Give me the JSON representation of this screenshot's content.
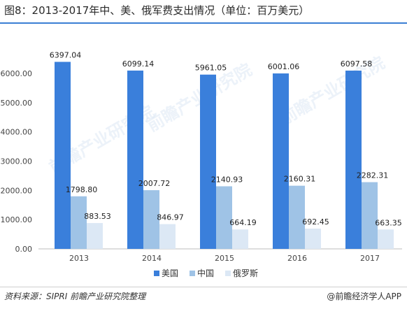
{
  "title": "图8：2013-2017年中、美、俄军费支出情况（单位：百万美元）",
  "source": "资料来源：SIPRI 前瞻产业研究院整理",
  "brand": "@前瞻经济学人APP",
  "watermark": "前瞻产业研究院",
  "colors": {
    "accent": "#3b7fd4",
    "usa": "#3a7fdb",
    "china": "#9fc3e6",
    "russia": "#dce8f5"
  },
  "chart_data": {
    "type": "bar",
    "categories": [
      "2013",
      "2014",
      "2015",
      "2016",
      "2017"
    ],
    "series": [
      {
        "name": "美国",
        "values": [
          6397.04,
          6099.14,
          5961.05,
          6001.06,
          6097.58
        ],
        "color": "#3a7fdb"
      },
      {
        "name": "中国",
        "values": [
          1798.8,
          2007.72,
          2140.93,
          2160.31,
          2282.31
        ],
        "color": "#9fc3e6"
      },
      {
        "name": "俄罗斯",
        "values": [
          883.53,
          846.97,
          664.19,
          692.45,
          663.35
        ],
        "color": "#dce8f5"
      }
    ],
    "yticks": [
      "0.00",
      "1000.00",
      "2000.00",
      "3000.00",
      "4000.00",
      "5000.00",
      "6000.00"
    ],
    "ylim": [
      0,
      6600
    ],
    "legend_position": "bottom",
    "grid": false
  }
}
